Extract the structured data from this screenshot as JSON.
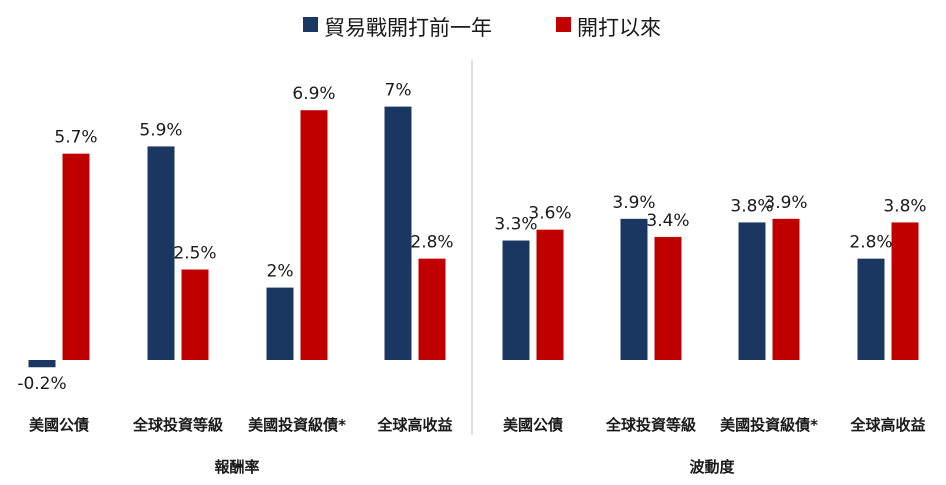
{
  "colors": {
    "before": "#1a3761",
    "after": "#c00000",
    "divider": "#bfbfbf"
  },
  "legend": [
    {
      "key": "before",
      "label": "貿易戰開打前一年"
    },
    {
      "key": "after",
      "label": "開打以來"
    }
  ],
  "chart_data": {
    "type": "bar",
    "series": [
      {
        "name": "貿易戰開打前一年",
        "key": "before"
      },
      {
        "name": "開打以來",
        "key": "after"
      }
    ],
    "groups": [
      {
        "label": "報酬率",
        "categories": [
          "美國公債",
          "全球投資等級",
          "美國投資級債*",
          "全球高收益"
        ],
        "values": {
          "before": [
            -0.2,
            5.9,
            2.0,
            7.0
          ],
          "after": [
            5.7,
            2.5,
            6.9,
            2.8
          ]
        },
        "value_labels": {
          "before": [
            "-0.2%",
            "5.9%",
            "2%",
            "7%"
          ],
          "after": [
            "5.7%",
            "2.5%",
            "6.9%",
            "2.8%"
          ]
        }
      },
      {
        "label": "波動度",
        "categories": [
          "美國公債",
          "全球投資等級",
          "美國投資級債*",
          "全球高收益"
        ],
        "values": {
          "before": [
            3.3,
            3.9,
            3.8,
            2.8
          ],
          "after": [
            3.6,
            3.4,
            3.9,
            3.8
          ]
        },
        "value_labels": {
          "before": [
            "3.3%",
            "3.9%",
            "3.8%",
            "2.8%"
          ],
          "after": [
            "3.6%",
            "3.4%",
            "3.9%",
            "3.8%"
          ]
        }
      }
    ],
    "grid": false,
    "legend_position": "top-center"
  }
}
